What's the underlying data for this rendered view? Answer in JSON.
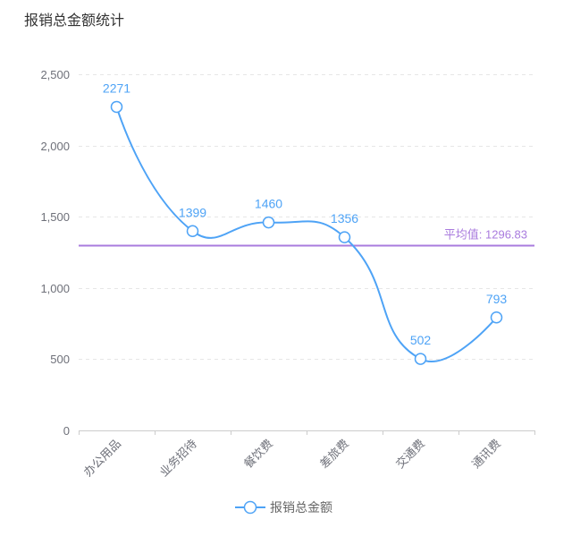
{
  "chart_data": {
    "type": "line",
    "smooth": true,
    "title": "报销总金额统计",
    "categories": [
      "办公用品",
      "业务招待",
      "餐饮费",
      "差旅费",
      "交通费",
      "通讯费"
    ],
    "series": [
      {
        "name": "报销总金额",
        "values": [
          2271,
          1399,
          1460,
          1356,
          502,
          793
        ],
        "color": "#4ea3f6",
        "data_labels": true
      }
    ],
    "ylim": [
      0,
      2500
    ],
    "yticks": [
      0,
      500,
      1000,
      1500,
      2000,
      2500
    ],
    "ytick_labels": [
      "0",
      "500",
      "1,000",
      "1,500",
      "2,000",
      "2,500"
    ],
    "grid": true,
    "mark_line": {
      "name": "平均值",
      "value": 1296.83,
      "color": "#a97bde"
    },
    "legend": {
      "position": "bottom-center"
    }
  }
}
